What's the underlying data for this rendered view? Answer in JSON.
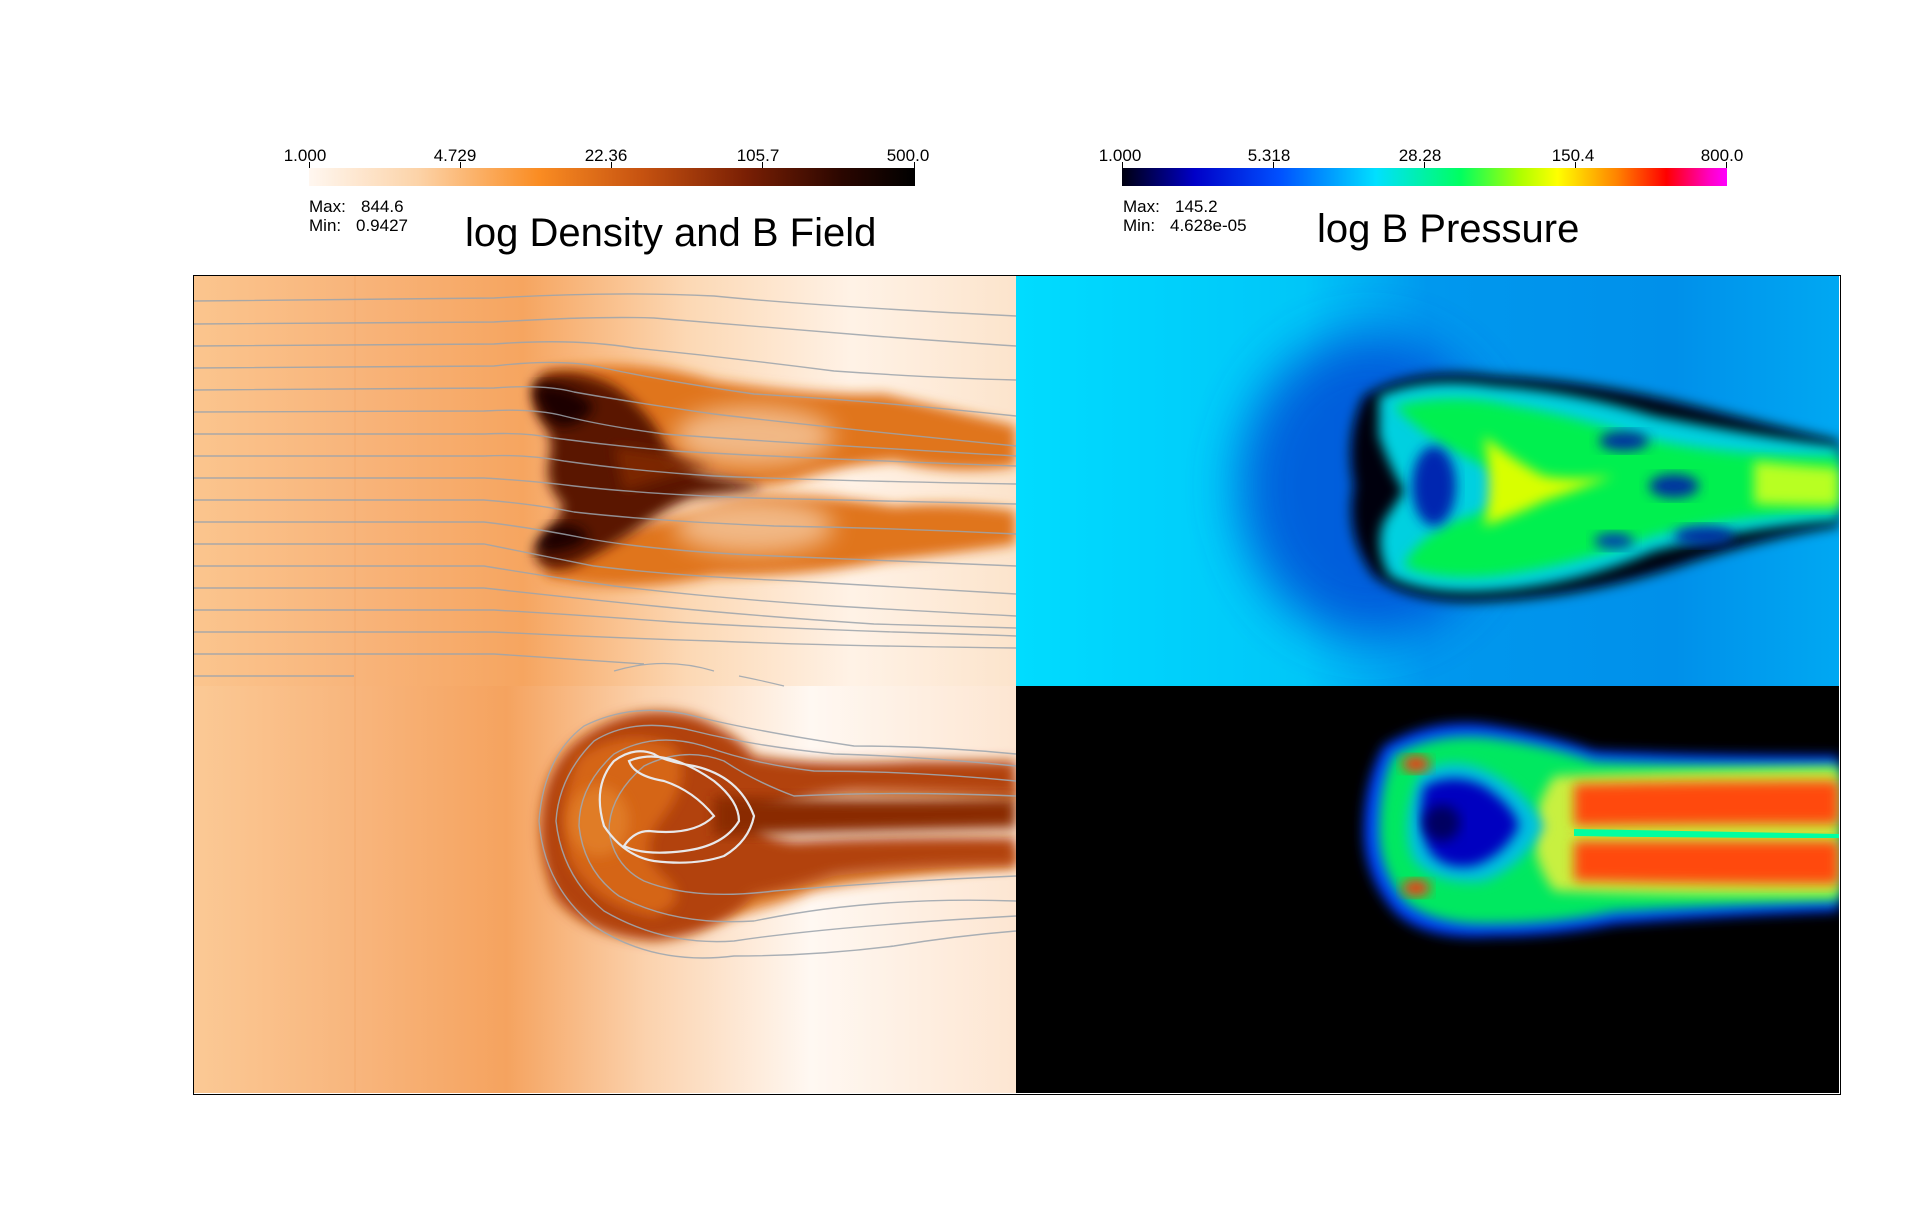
{
  "left_panel": {
    "title": "log Density and B Field",
    "colorbar": {
      "ticks": [
        "1.000",
        "4.729",
        "22.36",
        "105.7",
        "500.0"
      ],
      "colors": [
        "#fff6ee",
        "#fb8a1c",
        "#9c2c06",
        "#000000"
      ]
    },
    "max_label": "Max:",
    "max_value": "844.6",
    "min_label": "Min:",
    "min_value": "0.9427"
  },
  "right_panel": {
    "title": "log B Pressure",
    "colorbar": {
      "ticks": [
        "1.000",
        "5.318",
        "28.28",
        "150.4",
        "800.0"
      ],
      "colors": [
        "#000000",
        "#0000ff",
        "#00ffff",
        "#00ff00",
        "#ffff00",
        "#ff0000",
        "#ff00ff"
      ]
    },
    "max_label": "Max:",
    "max_value": "145.2",
    "min_label": "Min:",
    "min_value": "4.628e-05"
  }
}
